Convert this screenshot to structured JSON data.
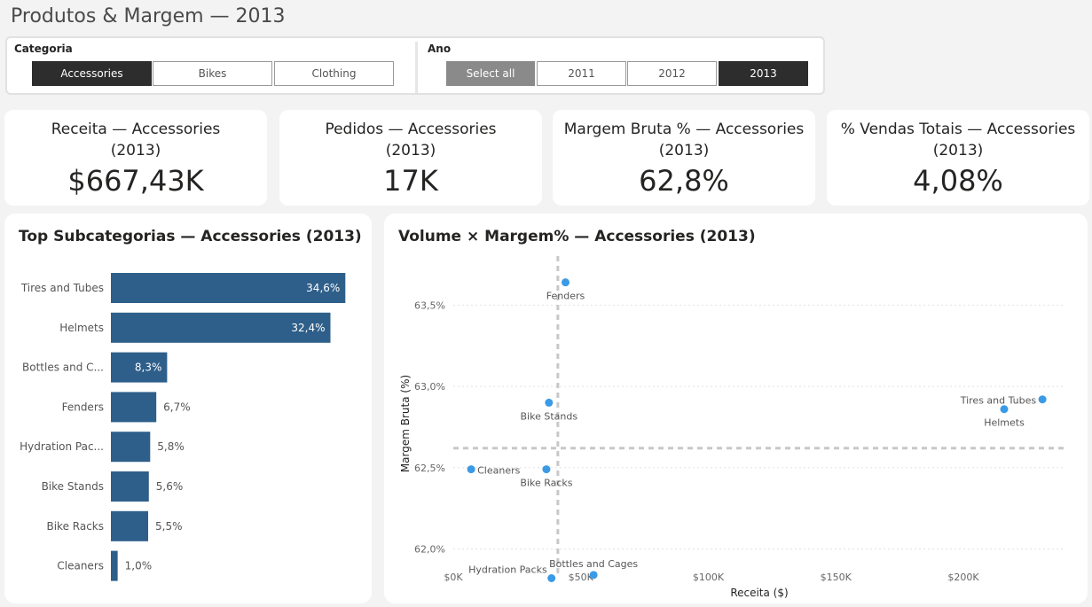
{
  "page_title": "Produtos & Margem — 2013",
  "slicers": {
    "categoria": {
      "label": "Categoria",
      "options": [
        {
          "label": "Accessories",
          "selected": true
        },
        {
          "label": "Bikes",
          "selected": false
        },
        {
          "label": "Clothing",
          "selected": false
        }
      ]
    },
    "ano": {
      "label": "Ano",
      "options": [
        {
          "label": "Select all",
          "selected": false
        },
        {
          "label": "2011",
          "selected": false
        },
        {
          "label": "2012",
          "selected": false
        },
        {
          "label": "2013",
          "selected": true
        }
      ]
    }
  },
  "kpis": [
    {
      "label_line1": "Receita — Accessories",
      "label_line2": "(2013)",
      "value": "$667,43K"
    },
    {
      "label_line1": "Pedidos — Accessories",
      "label_line2": "(2013)",
      "value": "17K"
    },
    {
      "label_line1": "Margem Bruta % — Accessories",
      "label_line2": "(2013)",
      "value": "62,8%"
    },
    {
      "label_line1": "% Vendas Totais — Accessories",
      "label_line2": "(2013)",
      "value": "4,08%"
    }
  ],
  "colors": {
    "bar": "#2e5f8a",
    "point": "#3b9ae6",
    "ref_line": "#c8c8c8"
  },
  "chart_data": [
    {
      "type": "bar",
      "orientation": "horizontal",
      "title": "Top Subcategorias — Accessories (2013)",
      "categories": [
        "Tires and Tubes",
        "Helmets",
        "Bottles and C...",
        "Fenders",
        "Hydration Pac...",
        "Bike Stands",
        "Bike Racks",
        "Cleaners"
      ],
      "values": [
        34.6,
        32.4,
        8.3,
        6.7,
        5.8,
        5.6,
        5.5,
        1.0
      ],
      "labels": [
        "34,6%",
        "32,4%",
        "8,3%",
        "6,7%",
        "5,8%",
        "5,6%",
        "5,5%",
        "1,0%"
      ],
      "xlim": [
        0,
        36
      ]
    },
    {
      "type": "scatter",
      "title": "Volume × Margem% — Accessories (2013)",
      "xlabel": "Receita ($)",
      "ylabel": "Margem Bruta (%)",
      "xlim": [
        0,
        240000
      ],
      "ylim": [
        61.85,
        63.78
      ],
      "xticks": [
        {
          "value": 0,
          "label": "$0K"
        },
        {
          "value": 50000,
          "label": "$50K"
        },
        {
          "value": 100000,
          "label": "$100K"
        },
        {
          "value": 150000,
          "label": "$150K"
        },
        {
          "value": 200000,
          "label": "$200K"
        }
      ],
      "yticks": [
        {
          "value": 62.0,
          "label": "62,0%"
        },
        {
          "value": 62.5,
          "label": "62,5%"
        },
        {
          "value": 63.0,
          "label": "63,0%"
        },
        {
          "value": 63.5,
          "label": "63,5%"
        }
      ],
      "reference_lines": {
        "x": 41000,
        "y": 62.62
      },
      "points": [
        {
          "name": "Fenders",
          "x": 44000,
          "y": 63.64,
          "label_pos": "below"
        },
        {
          "name": "Bike Stands",
          "x": 37500,
          "y": 62.9,
          "label_pos": "below"
        },
        {
          "name": "Cleaners",
          "x": 7000,
          "y": 62.49,
          "label_pos": "right"
        },
        {
          "name": "Bike Racks",
          "x": 36500,
          "y": 62.49,
          "label_pos": "below"
        },
        {
          "name": "Hydration Packs",
          "x": 38500,
          "y": 61.82,
          "label_pos": "above-left"
        },
        {
          "name": "Bottles and Cages",
          "x": 55000,
          "y": 61.84,
          "label_pos": "above"
        },
        {
          "name": "Tires and Tubes",
          "x": 231000,
          "y": 62.92,
          "label_pos": "left"
        },
        {
          "name": "Helmets",
          "x": 216000,
          "y": 62.86,
          "label_pos": "below"
        }
      ]
    }
  ]
}
